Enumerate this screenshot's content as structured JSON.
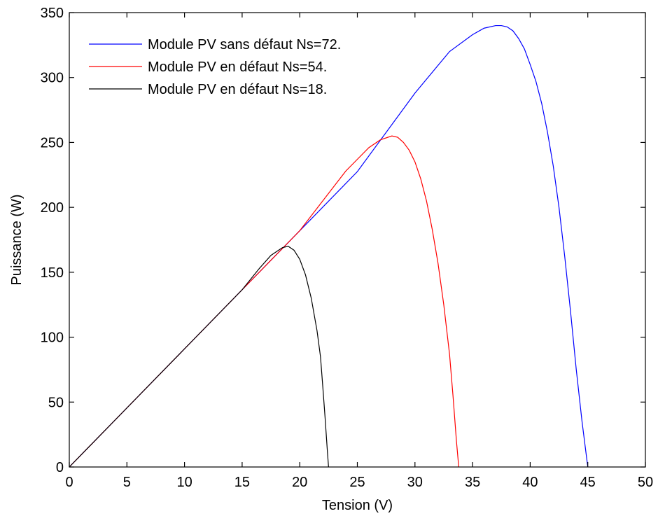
{
  "chart_data": {
    "type": "line",
    "xlabel": "Tension (V)",
    "ylabel": "Puissance (W)",
    "xlim": [
      0,
      50
    ],
    "ylim": [
      0,
      350
    ],
    "x_ticks": [
      0,
      5,
      10,
      15,
      20,
      25,
      30,
      35,
      40,
      45,
      50
    ],
    "y_ticks": [
      0,
      50,
      100,
      150,
      200,
      250,
      300,
      350
    ],
    "grid": false,
    "legend_position": "top-left",
    "series": [
      {
        "name": "Module PV sans défaut Ns=72.",
        "color": "#0000ff",
        "x": [
          0,
          5,
          10,
          15,
          20,
          25,
          30,
          33,
          35,
          36,
          37,
          37.5,
          38,
          38.5,
          39,
          39.5,
          40,
          40.5,
          41,
          41.5,
          42,
          42.5,
          43,
          43.5,
          44,
          44.5,
          45
        ],
        "y": [
          0,
          45.5,
          91,
          136.5,
          182,
          227.5,
          288,
          320,
          333,
          338,
          340,
          340,
          339,
          336,
          330,
          322,
          310,
          297,
          280,
          258,
          232,
          200,
          162,
          120,
          75,
          35,
          0
        ]
      },
      {
        "name": "Module PV en défaut Ns=54.",
        "color": "#ff0000",
        "x": [
          0,
          5,
          10,
          15,
          20,
          24,
          26,
          27,
          28,
          28.5,
          29,
          29.5,
          30,
          30.5,
          31,
          31.5,
          32,
          32.5,
          33,
          33.3,
          33.6,
          33.8
        ],
        "y": [
          0,
          45.5,
          91,
          136.5,
          182,
          228,
          246,
          252,
          255,
          254,
          250,
          244,
          235,
          222,
          205,
          183,
          157,
          125,
          87,
          55,
          20,
          0
        ]
      },
      {
        "name": "Module PV en défaut Ns=18.",
        "color": "#000000",
        "x": [
          0,
          5,
          10,
          15,
          16.5,
          17.5,
          18.5,
          19,
          19.5,
          20,
          20.5,
          21,
          21.5,
          21.8,
          22,
          22.2,
          22.4,
          22.5
        ],
        "y": [
          0,
          45.5,
          91,
          136.5,
          153,
          163,
          169,
          170,
          167,
          160,
          148,
          130,
          105,
          85,
          62,
          38,
          12,
          0
        ]
      }
    ]
  }
}
